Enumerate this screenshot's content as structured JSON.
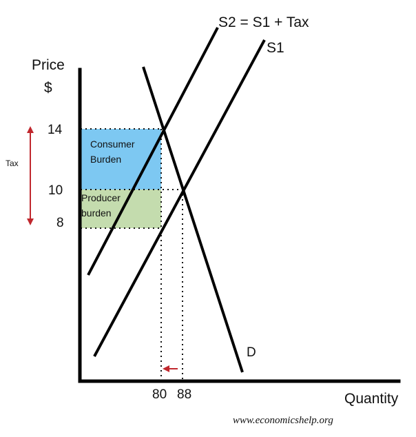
{
  "labels": {
    "y_axis_line1": "Price",
    "y_axis_line2": "$",
    "x_axis": "Quantity",
    "s2": "S2 = S1 + Tax",
    "s1": "S1",
    "d": "D",
    "tax": "Tax",
    "consumer_line1": "Consumer",
    "consumer_line2": "Burden",
    "producer_line1": "Producer",
    "producer_line2": "burden",
    "credit": "www.economicshelp.org"
  },
  "ticks": {
    "p14": "14",
    "p10": "10",
    "p8": "8",
    "q80": "80",
    "q88": "88"
  },
  "colors": {
    "axis": "#000000",
    "consumer_burden": "#7dc8f2",
    "producer_burden": "#c4dcae",
    "tax_arrow": "#c0272d",
    "shift_arrow": "#c0272d"
  }
}
